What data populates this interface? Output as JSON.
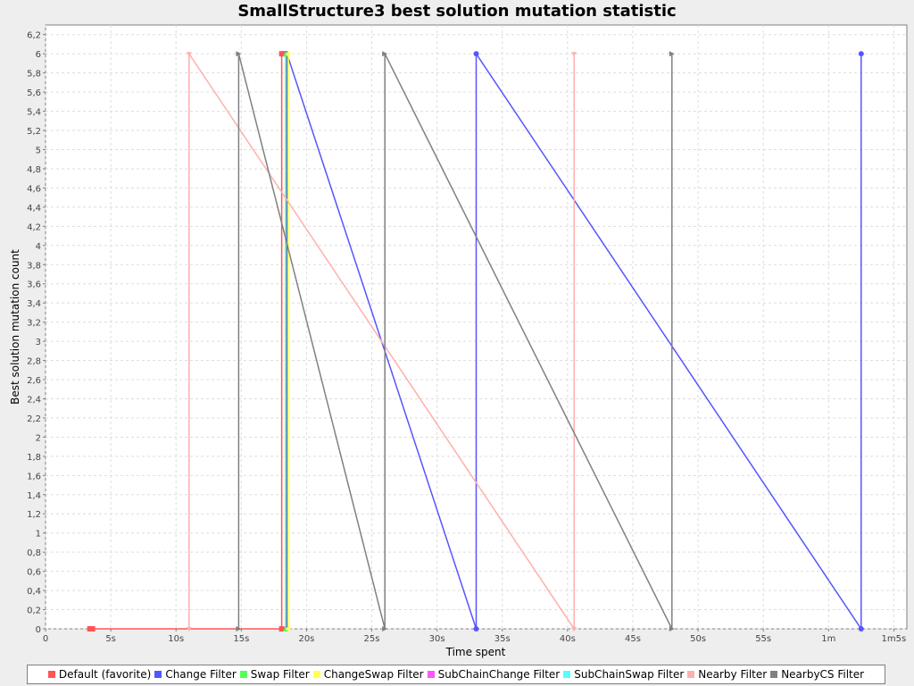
{
  "chart_data": {
    "type": "line",
    "title": "SmallStructure3 best solution mutation statistic",
    "xlabel": "Time spent",
    "ylabel": "Best solution mutation count",
    "xlim": [
      0,
      66
    ],
    "ylim": [
      0,
      6.3
    ],
    "grid": true,
    "legend_position": "bottom",
    "x_ticks": [
      {
        "value": 0,
        "label": "0"
      },
      {
        "value": 5,
        "label": "5s"
      },
      {
        "value": 10,
        "label": "10s"
      },
      {
        "value": 15,
        "label": "15s"
      },
      {
        "value": 20,
        "label": "20s"
      },
      {
        "value": 25,
        "label": "25s"
      },
      {
        "value": 30,
        "label": "30s"
      },
      {
        "value": 35,
        "label": "35s"
      },
      {
        "value": 40,
        "label": "40s"
      },
      {
        "value": 45,
        "label": "45s"
      },
      {
        "value": 50,
        "label": "50s"
      },
      {
        "value": 55,
        "label": "55s"
      },
      {
        "value": 60,
        "label": "1m"
      },
      {
        "value": 65,
        "label": "1m5s"
      }
    ],
    "y_ticks": [
      {
        "value": 0,
        "label": "0"
      },
      {
        "value": 0.2,
        "label": "0,2"
      },
      {
        "value": 0.4,
        "label": "0,4"
      },
      {
        "value": 0.6,
        "label": "0,6"
      },
      {
        "value": 0.8,
        "label": "0,8"
      },
      {
        "value": 1,
        "label": "1"
      },
      {
        "value": 1.2,
        "label": "1,2"
      },
      {
        "value": 1.4,
        "label": "1,4"
      },
      {
        "value": 1.6,
        "label": "1,6"
      },
      {
        "value": 1.8,
        "label": "1,8"
      },
      {
        "value": 2,
        "label": "2"
      },
      {
        "value": 2.2,
        "label": "2,2"
      },
      {
        "value": 2.4,
        "label": "2,4"
      },
      {
        "value": 2.6,
        "label": "2,6"
      },
      {
        "value": 2.8,
        "label": "2,8"
      },
      {
        "value": 3,
        "label": "3"
      },
      {
        "value": 3.2,
        "label": "3,2"
      },
      {
        "value": 3.4,
        "label": "3,4"
      },
      {
        "value": 3.6,
        "label": "3,6"
      },
      {
        "value": 3.8,
        "label": "3,8"
      },
      {
        "value": 4,
        "label": "4"
      },
      {
        "value": 4.2,
        "label": "4,2"
      },
      {
        "value": 4.4,
        "label": "4,4"
      },
      {
        "value": 4.6,
        "label": "4,6"
      },
      {
        "value": 4.8,
        "label": "4,8"
      },
      {
        "value": 5,
        "label": "5"
      },
      {
        "value": 5.2,
        "label": "5,2"
      },
      {
        "value": 5.4,
        "label": "5,4"
      },
      {
        "value": 5.6,
        "label": "5,6"
      },
      {
        "value": 5.8,
        "label": "5,8"
      },
      {
        "value": 6,
        "label": "6"
      },
      {
        "value": 6.2,
        "label": "6,2"
      }
    ],
    "series": [
      {
        "name": "Default (favorite)",
        "color": "#ff5555",
        "marker": "square",
        "points": [
          [
            3.4,
            0
          ],
          [
            3.6,
            0
          ],
          [
            18.1,
            0
          ],
          [
            18.1,
            6
          ],
          [
            18.3,
            6
          ]
        ]
      },
      {
        "name": "Change Filter",
        "color": "#5555ff",
        "marker": "circle",
        "points": [
          [
            18.5,
            0
          ],
          [
            18.5,
            6
          ],
          [
            33.0,
            0
          ],
          [
            33.0,
            6
          ],
          [
            62.5,
            0
          ],
          [
            62.5,
            6
          ]
        ]
      },
      {
        "name": "Swap Filter",
        "color": "#55ff55",
        "marker": "triangle-up",
        "points": [
          [
            18.4,
            0
          ],
          [
            18.4,
            6
          ]
        ]
      },
      {
        "name": "ChangeSwap Filter",
        "color": "#ffff55",
        "marker": "diamond",
        "points": [
          [
            18.6,
            0
          ],
          [
            18.6,
            6
          ]
        ]
      },
      {
        "name": "SubChainChange Filter",
        "color": "#ff55ff",
        "marker": "rect-h",
        "points": []
      },
      {
        "name": "SubChainSwap Filter",
        "color": "#55ffff",
        "marker": "circle",
        "points": []
      },
      {
        "name": "Nearby Filter",
        "color": "#ffafaf",
        "marker": "triangle-down",
        "points": [
          [
            11.0,
            0
          ],
          [
            11.0,
            6
          ],
          [
            40.5,
            0
          ],
          [
            40.5,
            6
          ]
        ]
      },
      {
        "name": "NearbyCS Filter",
        "color": "#808080",
        "marker": "triangle-right",
        "points": [
          [
            14.8,
            0
          ],
          [
            14.8,
            6
          ],
          [
            26.0,
            0
          ],
          [
            26.0,
            6
          ],
          [
            48.0,
            0
          ],
          [
            48.0,
            6
          ]
        ]
      }
    ]
  }
}
